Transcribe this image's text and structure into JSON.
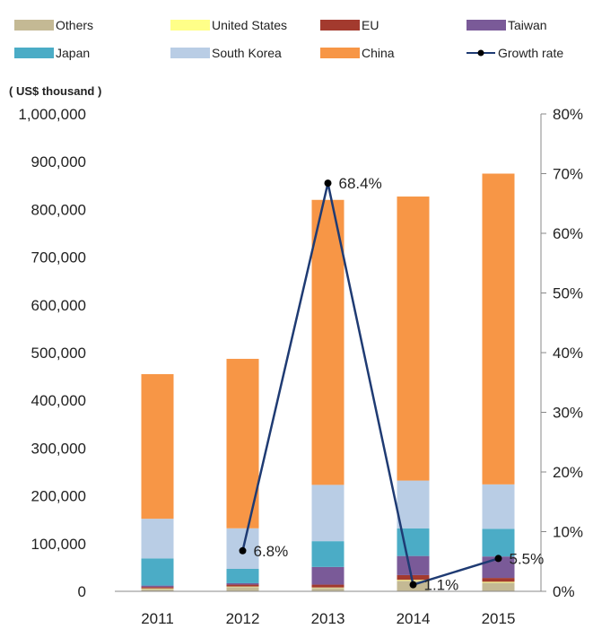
{
  "chart_data": {
    "type": "bar",
    "subtype": "stacked-bar-with-line",
    "unit_label": "( US$ thousand )",
    "categories": [
      "2011",
      "2012",
      "2013",
      "2014",
      "2015"
    ],
    "series": [
      {
        "name": "Others",
        "color": "#c4b994",
        "values": [
          5000,
          9000,
          7000,
          22000,
          18000
        ]
      },
      {
        "name": "United States",
        "color": "#ffff88",
        "values": [
          1000,
          1000,
          1000,
          2000,
          2000
        ]
      },
      {
        "name": "EU",
        "color": "#a33a2e",
        "values": [
          3000,
          4000,
          6000,
          10000,
          8000
        ]
      },
      {
        "name": "Taiwan",
        "color": "#7a5a98",
        "values": [
          3000,
          3000,
          37000,
          40000,
          45000
        ]
      },
      {
        "name": "Japan",
        "color": "#4bacc6",
        "values": [
          57000,
          30000,
          54000,
          58000,
          58000
        ]
      },
      {
        "name": "South Korea",
        "color": "#b9cde5",
        "values": [
          83000,
          85000,
          118000,
          100000,
          93000
        ]
      },
      {
        "name": "China",
        "color": "#f79646",
        "values": [
          303000,
          355000,
          597000,
          595000,
          651000
        ]
      }
    ],
    "line_series": {
      "name": "Growth rate",
      "color": "#1f3b73",
      "values": [
        null,
        6.8,
        68.4,
        1.1,
        5.5
      ],
      "labels": [
        "",
        "6.8%",
        "68.4%",
        "1.1%",
        "5.5%"
      ]
    },
    "ylim": [
      0,
      1000000
    ],
    "y_ticks": [
      "0",
      "100,000",
      "200,000",
      "300,000",
      "400,000",
      "500,000",
      "600,000",
      "700,000",
      "800,000",
      "900,000",
      "1,000,000"
    ],
    "y2lim": [
      0,
      80
    ],
    "y2_ticks": [
      "0%",
      "10%",
      "20%",
      "30%",
      "40%",
      "50%",
      "60%",
      "70%",
      "80%"
    ],
    "legend_position": "top",
    "grid": false
  }
}
